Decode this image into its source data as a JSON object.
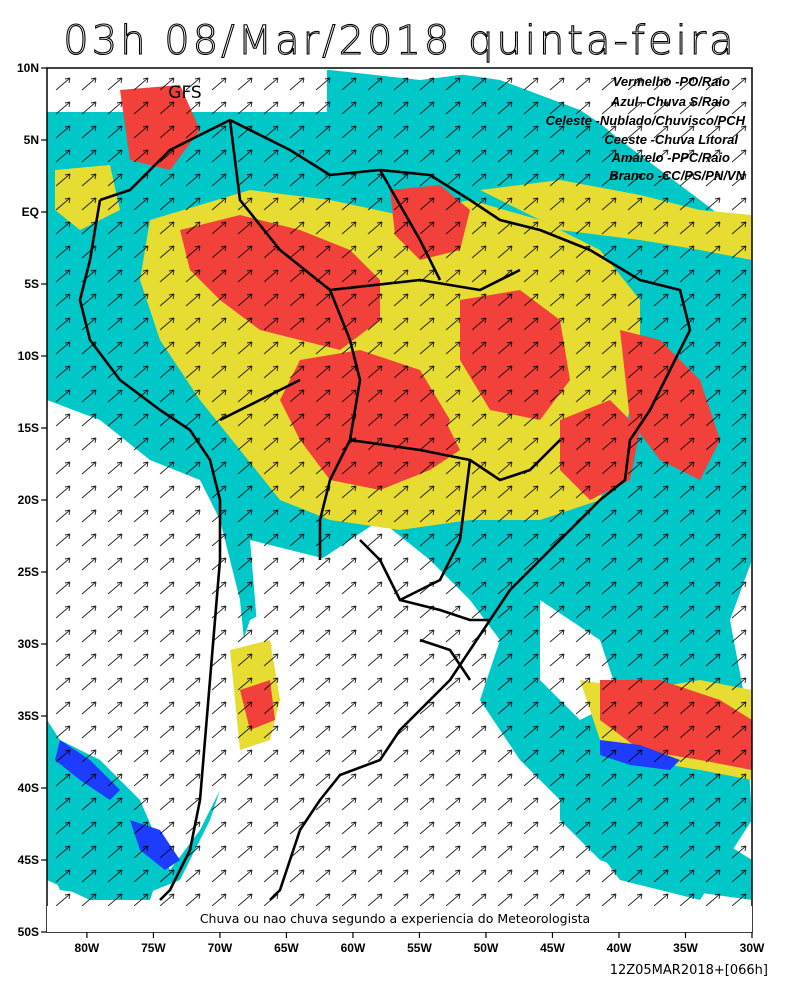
{
  "title": "03h 08/Mar/2018 quinta-feira",
  "model_label": "GFS",
  "legend": [
    "Vermelho -PO/Raio",
    "Azul -Chuva S/Raio",
    "Celeste -Nublado/Chuvisco/PCH",
    "Ceeste -Chuva Litoral",
    "Amarelo -PPC/Raio",
    "Branco -CC/PS/PN/VN"
  ],
  "footer_note": "Chuva ou nao chuva segundo a experiencia do Meteorologista",
  "run_label": "12Z05MAR2018+[066h]",
  "map": {
    "lon_range": [
      -83,
      -30
    ],
    "lat_range": [
      -50,
      10
    ],
    "lon_ticks": [
      "80W",
      "75W",
      "70W",
      "65W",
      "60W",
      "55W",
      "50W",
      "45W",
      "40W",
      "35W",
      "30W"
    ],
    "lat_ticks": [
      "10N",
      "5N",
      "EQ",
      "5S",
      "10S",
      "15S",
      "20S",
      "25S",
      "30S",
      "35S",
      "40S",
      "45S",
      "50S"
    ],
    "colors": {
      "red": "#f2413b",
      "yellow": "#e6dc32",
      "cyan": "#00c8c8",
      "blue": "#1e3cff",
      "white": "#ffffff"
    }
  }
}
